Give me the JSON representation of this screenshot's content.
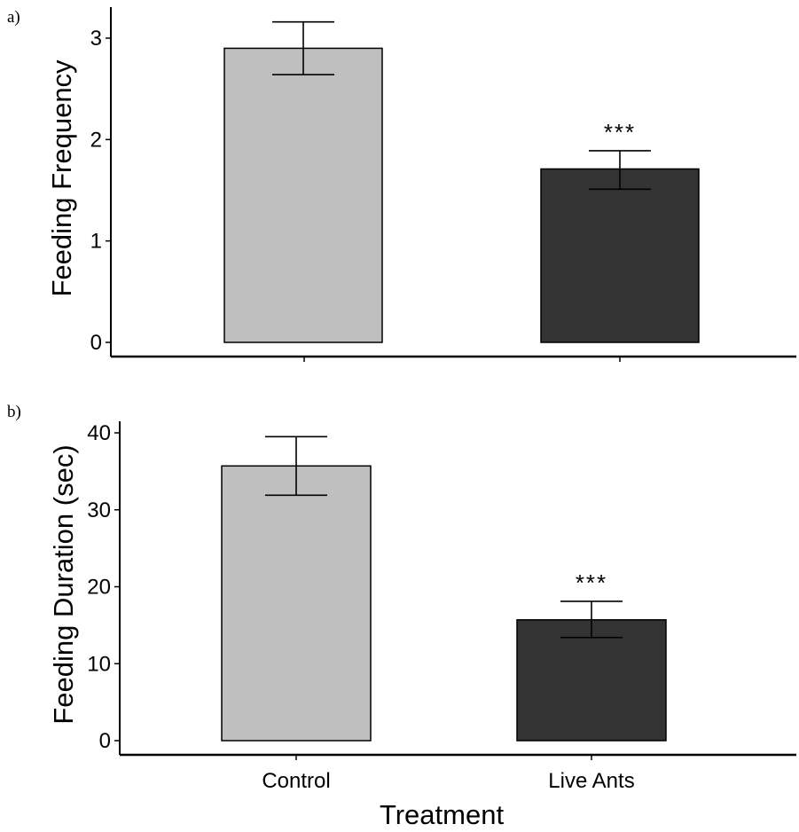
{
  "chart_data": [
    {
      "type": "bar",
      "panel_label": "a)",
      "categories": [
        "Control",
        "Live Ants"
      ],
      "values": [
        2.9,
        1.71
      ],
      "error_upper": [
        3.16,
        1.89
      ],
      "error_lower": [
        2.64,
        1.51
      ],
      "annotations": [
        "",
        "***"
      ],
      "bar_colors": [
        "#bfbfbf",
        "#333333"
      ],
      "ylabel": "Feeding Frequency",
      "xlabel": "",
      "ylim": [
        0,
        3.3
      ],
      "yticks": [
        0,
        1,
        2,
        3
      ],
      "show_category_labels": false,
      "grid": false
    },
    {
      "type": "bar",
      "panel_label": "b)",
      "categories": [
        "Control",
        "Live Ants"
      ],
      "values": [
        35.7,
        15.7
      ],
      "error_upper": [
        39.5,
        18.1
      ],
      "error_lower": [
        31.9,
        13.4
      ],
      "annotations": [
        "",
        "***"
      ],
      "bar_colors": [
        "#bfbfbf",
        "#333333"
      ],
      "ylabel": "Feeding Duration (sec)",
      "xlabel": "Treatment",
      "ylim": [
        0,
        41.3
      ],
      "yticks": [
        0,
        10,
        20,
        30,
        40
      ],
      "show_category_labels": true,
      "grid": false
    }
  ]
}
